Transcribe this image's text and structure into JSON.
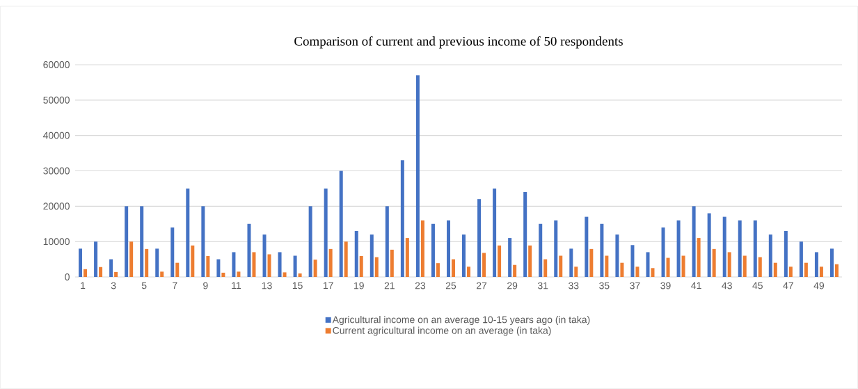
{
  "chart_data": {
    "type": "bar",
    "title": "Comparison of current and previous income of 50 respondents",
    "categories": [
      "1",
      null,
      "3",
      null,
      "5",
      null,
      "7",
      null,
      "9",
      null,
      "11",
      null,
      "13",
      null,
      "15",
      null,
      "17",
      null,
      "19",
      null,
      "21",
      null,
      "23",
      null,
      "25",
      null,
      "27",
      null,
      "29",
      null,
      "31",
      null,
      "33",
      null,
      "35",
      null,
      "37",
      null,
      "39",
      null,
      "41",
      null,
      "43",
      null,
      "45",
      null,
      "47",
      null,
      "49",
      null
    ],
    "series": [
      {
        "name": "Agricultural income on an average 10-15 years ago (in taka)",
        "color": "#4472c4",
        "values": [
          8000,
          10000,
          5000,
          20000,
          20000,
          8000,
          14000,
          25000,
          20000,
          5000,
          7000,
          15000,
          12000,
          7000,
          6000,
          20000,
          25000,
          30000,
          13000,
          12000,
          20000,
          33000,
          57000,
          15000,
          16000,
          12000,
          22000,
          25000,
          11000,
          24000,
          15000,
          16000,
          8000,
          17000,
          15000,
          12000,
          9000,
          7000,
          14000,
          16000,
          20000,
          18000,
          17000,
          16000,
          16000,
          12000,
          13000,
          10000,
          7000,
          8000
        ]
      },
      {
        "name": "Current agricultural income on an average (in taka)",
        "color": "#ed7d31",
        "values": [
          2200,
          2800,
          1400,
          10000,
          7900,
          1500,
          4000,
          8900,
          5900,
          1200,
          1500,
          7000,
          6400,
          1300,
          1000,
          4900,
          7900,
          10000,
          5900,
          5600,
          7700,
          11000,
          16000,
          3900,
          5000,
          2900,
          6800,
          8900,
          3400,
          8900,
          5000,
          6000,
          2900,
          7900,
          6000,
          4000,
          2900,
          2500,
          5400,
          6000,
          11000,
          7900,
          7000,
          6000,
          5600,
          4000,
          2900,
          4000,
          2900,
          3600
        ]
      }
    ],
    "ylim": [
      0,
      60000
    ],
    "yticks": [
      0,
      10000,
      20000,
      30000,
      40000,
      50000,
      60000
    ],
    "grid": "y",
    "legend": "bottom"
  }
}
